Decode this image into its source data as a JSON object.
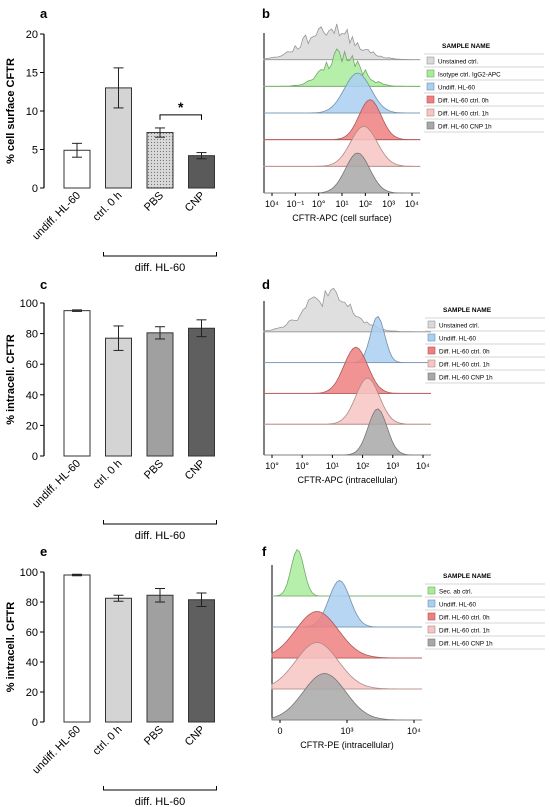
{
  "panels": {
    "a": "a",
    "b": "b",
    "c": "c",
    "d": "d",
    "e": "e",
    "f": "f"
  },
  "chart_data": [
    {
      "id": "a",
      "type": "bar",
      "ylabel": "% cell surface CFTR",
      "ylim": [
        0,
        20
      ],
      "yticks": [
        "0",
        "5",
        "10",
        "15",
        "20"
      ],
      "categories": [
        "undiff. HL-60",
        "ctrl. 0 h",
        "PBS",
        "CNP"
      ],
      "values": [
        4.9,
        13.0,
        7.2,
        4.2
      ],
      "errors": [
        0.9,
        2.6,
        0.6,
        0.4
      ],
      "fills": [
        "#ffffff",
        "#d4d4d4",
        "#d9d9d9",
        "#5a5a5a"
      ],
      "patterned": [
        false,
        false,
        true,
        false
      ],
      "group_label": "diff. HL-60",
      "significance": "*"
    },
    {
      "id": "c",
      "type": "bar",
      "ylabel": "% intracell. CFTR",
      "ylim": [
        0,
        100
      ],
      "yticks": [
        "0",
        "20",
        "40",
        "60",
        "80",
        "100"
      ],
      "categories": [
        "undiff. HL-60",
        "ctrl. 0 h",
        "PBS",
        "CNP"
      ],
      "values": [
        95,
        77,
        80.5,
        83.5
      ],
      "errors": [
        0.5,
        8,
        4,
        5.5
      ],
      "fills": [
        "#ffffff",
        "#d4d4d4",
        "#a0a0a0",
        "#5f5f5f"
      ],
      "patterned": [
        false,
        false,
        false,
        false
      ],
      "group_label": "diff. HL-60"
    },
    {
      "id": "e",
      "type": "bar",
      "ylabel": "% intracell. CFTR",
      "ylim": [
        0,
        100
      ],
      "yticks": [
        "0",
        "20",
        "40",
        "60",
        "80",
        "100"
      ],
      "categories": [
        "undiff. HL-60",
        "ctrl. 0 h",
        "PBS",
        "CNP"
      ],
      "values": [
        98,
        82.5,
        84.5,
        81.5
      ],
      "errors": [
        0.5,
        2,
        4.5,
        4.5
      ],
      "fills": [
        "#ffffff",
        "#d4d4d4",
        "#a0a0a0",
        "#5f5f5f"
      ],
      "patterned": [
        false,
        false,
        false,
        false
      ],
      "group_label": "diff. HL-60"
    },
    {
      "id": "b",
      "type": "area",
      "xlabel": "CFTR-APC (cell surface)",
      "xticks": [
        "10⁴",
        "10⁻¹",
        "10°",
        "10¹",
        "10²",
        "10³",
        "10⁴"
      ],
      "legend_title": "SAMPLE NAME",
      "series": [
        {
          "name": "Unstained ctrl.",
          "color": "#d9d9d9",
          "peak": 0.42,
          "width": 0.22,
          "noisy": true
        },
        {
          "name": "Isotype ctrl. IgG2-APC",
          "color": "#a8ec9a",
          "peak": 0.5,
          "width": 0.16,
          "noisy": true
        },
        {
          "name": "Undiff. HL-60",
          "color": "#a9cff2",
          "peak": 0.6,
          "width": 0.12,
          "noisy": false
        },
        {
          "name": "Diff. HL-60 ctrl. 0h",
          "color": "#f08080",
          "peak": 0.68,
          "width": 0.1,
          "noisy": false
        },
        {
          "name": "Diff. HL-60 ctrl. 1h",
          "color": "#f7c6c3",
          "peak": 0.64,
          "width": 0.12,
          "noisy": false
        },
        {
          "name": "Diff. HL-60 CNP 1h",
          "color": "#a8a8a8",
          "peak": 0.6,
          "width": 0.11,
          "noisy": false
        }
      ]
    },
    {
      "id": "d",
      "type": "area",
      "xlabel": "CFTR-APC (intracellular)",
      "xticks": [
        "10°",
        "10°",
        "10¹",
        "10²",
        "10³",
        "10⁴"
      ],
      "legend_title": "SAMPLE NAME",
      "series": [
        {
          "name": "Unstained ctrl.",
          "color": "#d9d9d9",
          "peak": 0.38,
          "width": 0.2,
          "noisy": true
        },
        {
          "name": "Undiff. HL-60",
          "color": "#a9cff2",
          "peak": 0.68,
          "width": 0.06,
          "noisy": false
        },
        {
          "name": "Diff. HL-60 ctrl. 0h",
          "color": "#f08080",
          "peak": 0.55,
          "width": 0.1,
          "noisy": false
        },
        {
          "name": "Diff. HL-60 ctrl. 1h",
          "color": "#f7c6c3",
          "peak": 0.62,
          "width": 0.1,
          "noisy": false
        },
        {
          "name": "Diff. HL-60 CNP 1h",
          "color": "#a8a8a8",
          "peak": 0.68,
          "width": 0.08,
          "noisy": false
        }
      ]
    },
    {
      "id": "f",
      "type": "area",
      "xlabel": "CFTR-PE (intracellular)",
      "xticks": [
        "0",
        "10³",
        "10⁴"
      ],
      "legend_title": "SAMPLE NAME",
      "series": [
        {
          "name": "Sec. ab ctrl.",
          "color": "#a8ec9a",
          "peak": 0.17,
          "width": 0.06,
          "noisy": false
        },
        {
          "name": "Undiff. HL-60",
          "color": "#a9cff2",
          "peak": 0.45,
          "width": 0.1,
          "noisy": false
        },
        {
          "name": "Diff. HL-60 ctrl. 0h",
          "color": "#f08080",
          "peak": 0.3,
          "width": 0.2,
          "noisy": false
        },
        {
          "name": "Diff. HL-60 ctrl. 1h",
          "color": "#f7c6c3",
          "peak": 0.3,
          "width": 0.2,
          "noisy": false
        },
        {
          "name": "Diff. HL-60 CNP 1h",
          "color": "#a8a8a8",
          "peak": 0.35,
          "width": 0.2,
          "noisy": false
        }
      ]
    }
  ]
}
